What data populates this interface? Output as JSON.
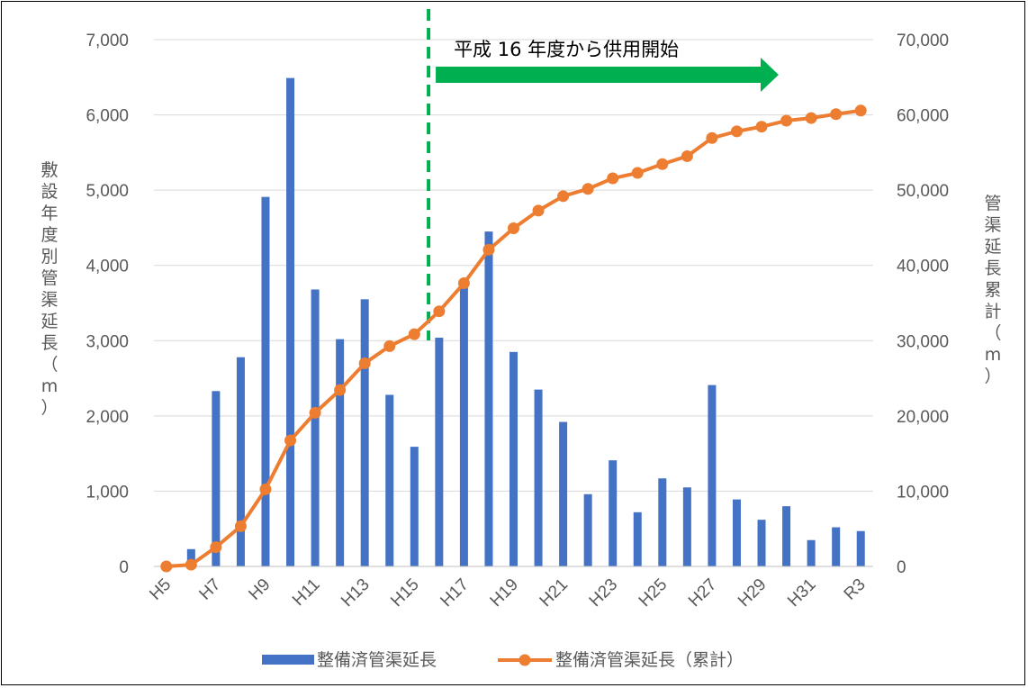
{
  "chart_data": {
    "type": "bar",
    "categories": [
      "H5",
      "H6",
      "H7",
      "H8",
      "H9",
      "H10",
      "H11",
      "H12",
      "H13",
      "H14",
      "H15",
      "H16",
      "H17",
      "H18",
      "H19",
      "H20",
      "H21",
      "H22",
      "H23",
      "H24",
      "H25",
      "H26",
      "H27",
      "H28",
      "H29",
      "H30",
      "H31",
      "R2",
      "R3"
    ],
    "x_tick_labels": [
      "H5",
      "H7",
      "H9",
      "H11",
      "H13",
      "H15",
      "H17",
      "H19",
      "H21",
      "H23",
      "H25",
      "H27",
      "H29",
      "H31",
      "R3"
    ],
    "series": [
      {
        "name": "整備済管渠延長",
        "type": "bar",
        "axis": "left",
        "color": "#4472C4",
        "values": [
          0,
          230,
          2330,
          2780,
          4910,
          6490,
          3680,
          3020,
          3550,
          2280,
          1590,
          3040,
          3730,
          4450,
          2850,
          2350,
          1920,
          960,
          1410,
          720,
          1170,
          1050,
          2410,
          890,
          620,
          800,
          350,
          520,
          470
        ]
      },
      {
        "name": "整備済管渠延長（累計）",
        "type": "line",
        "axis": "right",
        "color": "#ED7D31",
        "values": [
          0,
          230,
          2560,
          5340,
          10250,
          16740,
          20420,
          23440,
          26990,
          29270,
          30860,
          33900,
          37630,
          42080,
          44930,
          47280,
          49200,
          50160,
          51570,
          52290,
          53460,
          54510,
          56920,
          57810,
          58430,
          59230,
          59580,
          60100,
          60570
        ]
      }
    ],
    "left_axis": {
      "label_chars": [
        "敷",
        "設",
        "年",
        "度",
        "別",
        "管",
        "渠",
        "延",
        "長",
        "（",
        "m",
        "）"
      ],
      "range": [
        0,
        7000
      ],
      "ticks": [
        "0",
        "1,000",
        "2,000",
        "3,000",
        "4,000",
        "5,000",
        "6,000",
        "7,000"
      ]
    },
    "right_axis": {
      "label_chars": [
        "管",
        "渠",
        "延",
        "長",
        "累",
        "計",
        "（",
        "m",
        "）"
      ],
      "range": [
        0,
        70000
      ],
      "ticks": [
        "0",
        "10,000",
        "20,000",
        "30,000",
        "40,000",
        "50,000",
        "60,000",
        "70,000"
      ]
    },
    "grid": true,
    "legend_position": "bottom",
    "annotation": {
      "text": "平成 16 年度から供用開始",
      "marker_category": "H16",
      "line_color": "#00B050",
      "arrow_color": "#00B050"
    }
  }
}
